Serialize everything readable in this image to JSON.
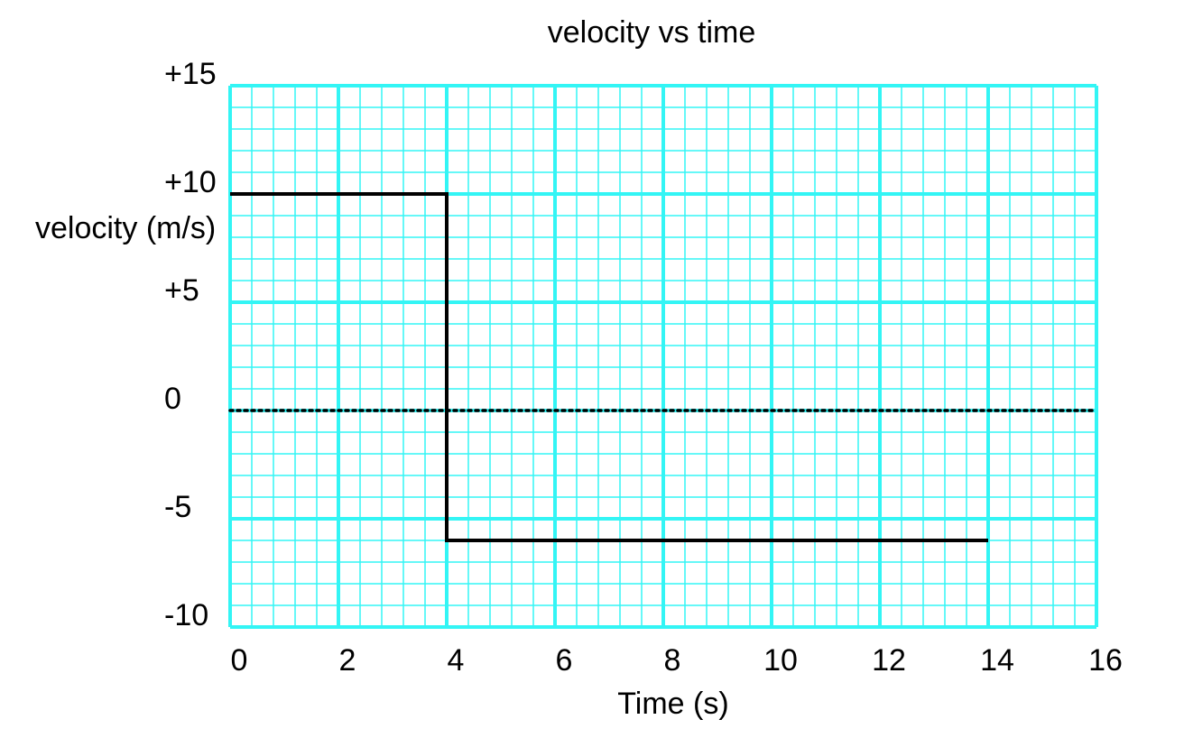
{
  "chart_data": {
    "type": "line",
    "title": "velocity vs time",
    "xlabel": "Time (s)",
    "ylabel": "velocity (m/s)",
    "xlim": [
      0,
      16
    ],
    "ylim": [
      -10,
      15
    ],
    "x_ticks": [
      0,
      2,
      4,
      6,
      8,
      10,
      12,
      14,
      16
    ],
    "x_tick_labels": [
      "0",
      "2",
      "4",
      "6",
      "8",
      "10",
      "12",
      "14",
      "16"
    ],
    "y_ticks": [
      15,
      10,
      5,
      0,
      -5,
      -10
    ],
    "y_tick_labels": [
      "+15",
      "+10",
      "+5",
      "0",
      "-5",
      "-10"
    ],
    "grid": true,
    "grid_minor_per_major": 5,
    "grid_color": "#33f5f5",
    "zero_line_style": "dotted",
    "series": [
      {
        "color": "#000000",
        "x": [
          0,
          4,
          4,
          14
        ],
        "y": [
          10,
          10,
          -6,
          -6
        ]
      }
    ]
  }
}
